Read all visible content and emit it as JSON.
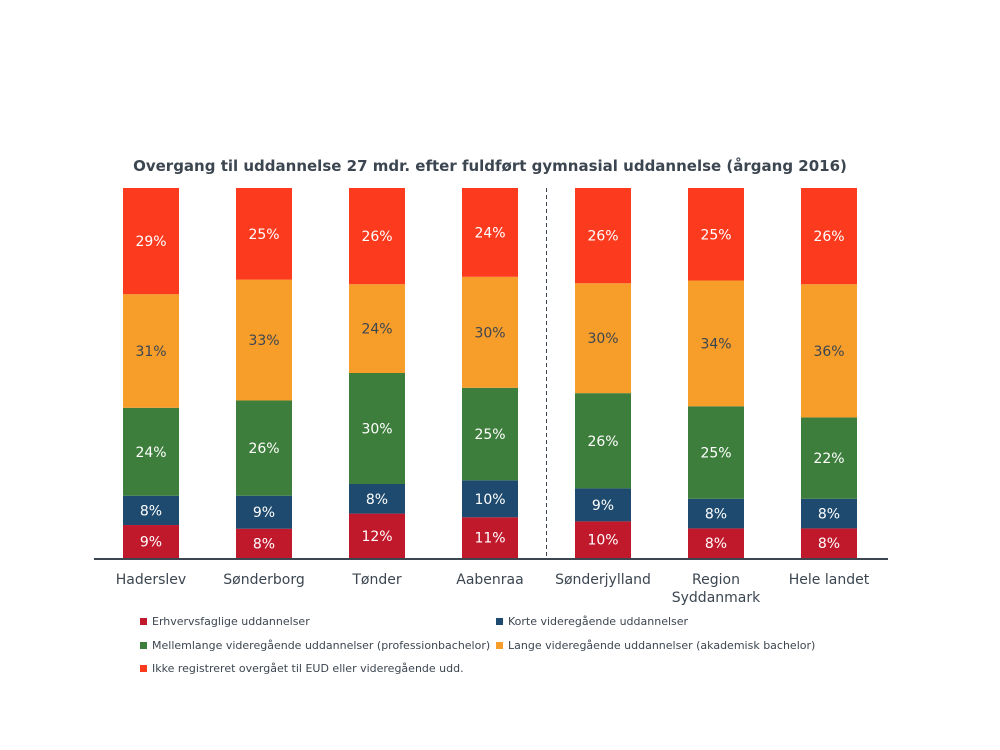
{
  "chart_data": {
    "type": "bar",
    "stacked": true,
    "percent_stacked": true,
    "title": "Overgang til uddannelse 27 mdr. efter fuldført gymnasial uddannelse (årgang 2016)",
    "categories": [
      "Haderslev",
      "Sønderborg",
      "Tønder",
      "Aabenraa",
      "Sønderjylland",
      "Region Syddanmark",
      "Hele landet"
    ],
    "category_lines": [
      [
        "Haderslev"
      ],
      [
        "Sønderborg"
      ],
      [
        "Tønder"
      ],
      [
        "Aabenraa"
      ],
      [
        "Sønderjylland"
      ],
      [
        "Region",
        "Syddanmark"
      ],
      [
        "Hele landet"
      ]
    ],
    "divider_after_category": 3,
    "series": [
      {
        "name": "Erhvervsfaglige uddannelser",
        "color": "#c0192c",
        "label_color": "#ffffff",
        "values": [
          9,
          8,
          12,
          11,
          10,
          8,
          8
        ]
      },
      {
        "name": "Korte videregående uddannelser",
        "color": "#1d4a6e",
        "label_color": "#ffffff",
        "values": [
          8,
          9,
          8,
          10,
          9,
          8,
          8
        ]
      },
      {
        "name": "Mellemlange videregående uddannelser (professionbachelor)",
        "color": "#3e7e3c",
        "label_color": "#ffffff",
        "values": [
          24,
          26,
          30,
          25,
          26,
          25,
          22
        ]
      },
      {
        "name": "Lange videregående uddannelser (akademisk bachelor)",
        "color": "#f79d2a",
        "label_color": "#3c4650",
        "values": [
          31,
          33,
          24,
          30,
          30,
          34,
          36
        ]
      },
      {
        "name": "Ikke registreret overgået til EUD eller videregående udd.",
        "color": "#fb3a1e",
        "label_color": "#ffffff",
        "values": [
          29,
          25,
          26,
          24,
          26,
          25,
          26
        ]
      }
    ],
    "value_suffix": "%",
    "legend_position": "bottom",
    "ylim": [
      0,
      100
    ],
    "axis_color": "#3c4650"
  }
}
